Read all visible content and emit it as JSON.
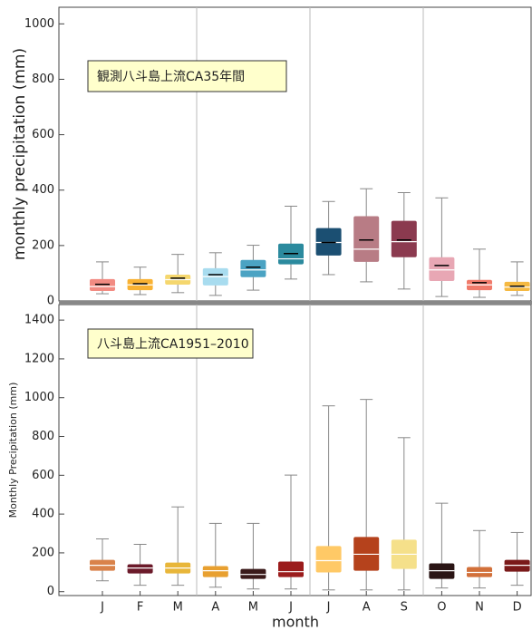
{
  "chart_data": [
    {
      "type": "box",
      "ylabel": "monthly precipitation (mm)",
      "annotation": "観測八斗島上流CA35年間",
      "ylim": [
        0,
        1060
      ],
      "yticks": [
        0,
        200,
        400,
        600,
        800,
        1000
      ],
      "boxes": [
        {
          "color": "#f28b82",
          "low": 26,
          "q1": 36,
          "median": 52,
          "q3": 79,
          "high": 141,
          "mean": 60
        },
        {
          "color": "#f9b233",
          "low": 23,
          "q1": 39,
          "median": 58,
          "q3": 79,
          "high": 122,
          "mean": 62
        },
        {
          "color": "#f5d76e",
          "low": 30,
          "q1": 59,
          "median": 77,
          "q3": 95,
          "high": 168,
          "mean": 82
        },
        {
          "color": "#a8dcef",
          "low": 20,
          "q1": 56,
          "median": 88,
          "q3": 118,
          "high": 174,
          "mean": 95
        },
        {
          "color": "#4ba3c3",
          "low": 39,
          "q1": 86,
          "median": 112,
          "q3": 148,
          "high": 201,
          "mean": 122
        },
        {
          "color": "#2b8a9e",
          "low": 79,
          "q1": 132,
          "median": 152,
          "q3": 207,
          "high": 342,
          "mean": 171
        },
        {
          "color": "#1b4f72",
          "low": 95,
          "q1": 164,
          "median": 211,
          "q3": 263,
          "high": 359,
          "mean": 211
        },
        {
          "color": "#b87c85",
          "low": 69,
          "q1": 141,
          "median": 187,
          "q3": 306,
          "high": 405,
          "mean": 220
        },
        {
          "color": "#8b3a4f",
          "low": 43,
          "q1": 158,
          "median": 214,
          "q3": 289,
          "high": 391,
          "mean": 220
        },
        {
          "color": "#e8a7b4",
          "low": 16,
          "q1": 72,
          "median": 112,
          "q3": 158,
          "high": 372,
          "mean": 128
        },
        {
          "color": "#f07a6a",
          "low": 13,
          "q1": 39,
          "median": 58,
          "q3": 76,
          "high": 187,
          "mean": 66
        },
        {
          "color": "#f5b942",
          "low": 20,
          "q1": 36,
          "median": 50,
          "q3": 69,
          "high": 141,
          "mean": 53
        }
      ]
    },
    {
      "type": "box",
      "ylabel": "Monthly Precipitation (mm)",
      "annotation": "八斗島上流CA1951–2010",
      "xlabel": "month",
      "categories": [
        "J",
        "F",
        "M",
        "A",
        "M",
        "J",
        "J",
        "A",
        "S",
        "O",
        "N",
        "D"
      ],
      "ylim": [
        -20,
        1480
      ],
      "yticks": [
        0,
        200,
        400,
        600,
        800,
        1000,
        1200,
        1400
      ],
      "boxes": [
        {
          "color": "#d9824a",
          "low": 56,
          "q1": 108,
          "median": 136,
          "q3": 164,
          "high": 272
        },
        {
          "color": "#6b1a2a",
          "low": 33,
          "q1": 94,
          "median": 122,
          "q3": 141,
          "high": 244
        },
        {
          "color": "#e8b63a",
          "low": 33,
          "q1": 94,
          "median": 122,
          "q3": 150,
          "high": 437
        },
        {
          "color": "#e8a030",
          "low": 23,
          "q1": 75,
          "median": 108,
          "q3": 132,
          "high": 352
        },
        {
          "color": "#3a1a1a",
          "low": 14,
          "q1": 66,
          "median": 89,
          "q3": 117,
          "high": 352
        },
        {
          "color": "#9b1c1c",
          "low": 14,
          "q1": 75,
          "median": 103,
          "q3": 155,
          "high": 601
        },
        {
          "color": "#ffc966",
          "low": 9,
          "q1": 99,
          "median": 160,
          "q3": 235,
          "high": 958
        },
        {
          "color": "#b5421c",
          "low": 9,
          "q1": 108,
          "median": 193,
          "q3": 282,
          "high": 991
        },
        {
          "color": "#f5e08a",
          "low": 9,
          "q1": 117,
          "median": 193,
          "q3": 268,
          "high": 794
        },
        {
          "color": "#2a1515",
          "low": 19,
          "q1": 66,
          "median": 108,
          "q3": 146,
          "high": 456
        },
        {
          "color": "#d2703a",
          "low": 19,
          "q1": 75,
          "median": 99,
          "q3": 127,
          "high": 315
        },
        {
          "color": "#7a1a1a",
          "low": 33,
          "q1": 103,
          "median": 136,
          "q3": 164,
          "high": 305
        }
      ]
    }
  ]
}
